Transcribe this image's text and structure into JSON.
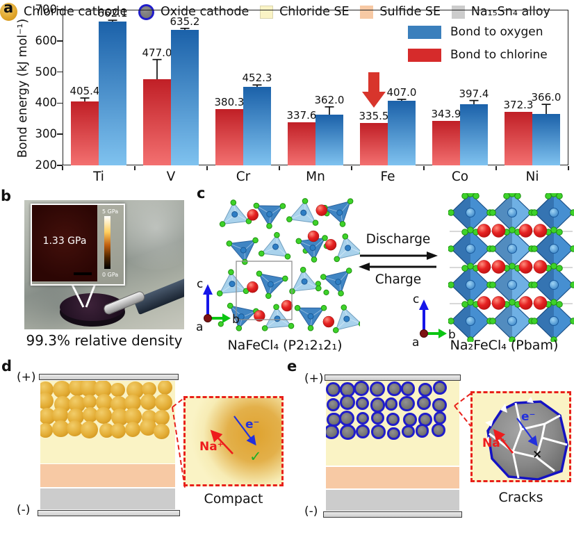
{
  "figure": {
    "panel_labels": {
      "a": "a",
      "b": "b",
      "c": "c",
      "d": "d",
      "e": "e"
    }
  },
  "chart_data": {
    "type": "bar",
    "title": "",
    "categories": [
      "Ti",
      "V",
      "Cr",
      "Mn",
      "Fe",
      "Co",
      "Ni"
    ],
    "series": [
      {
        "name": "Bond to oxygen",
        "legend_color": "#3a7fbc",
        "color_top": "#1b61a9",
        "color_bottom": "#7fc2ef",
        "values": [
          662.1,
          635.2,
          452.3,
          362.0,
          407.0,
          397.4,
          366.0
        ],
        "errors": [
          4,
          5,
          6,
          26,
          5,
          11,
          30
        ]
      },
      {
        "name": "Bond to chlorine",
        "legend_color": "#d62b2b",
        "color_top": "#c01f26",
        "color_bottom": "#f37070",
        "values": [
          405.4,
          477.0,
          380.3,
          337.6,
          335.5,
          343.9,
          372.3
        ],
        "errors": [
          11,
          63,
          null,
          null,
          null,
          null,
          null
        ]
      }
    ],
    "xlabel": "",
    "ylabel": "Bond energy (kJ mol⁻¹)",
    "ylim": [
      200,
      700
    ],
    "yticks": [
      200,
      300,
      400,
      500,
      600,
      700
    ],
    "grid": false,
    "legend_position": "top-right",
    "annotation": {
      "symbol": "down-arrow",
      "target_category": "Fe",
      "target_series": "Bond to chlorine"
    }
  },
  "panel_b": {
    "modulus_value": "1.33 GPa",
    "colorbar_max": "5 GPa",
    "colorbar_min": "0 GPa",
    "caption": "99.3% relative density"
  },
  "panel_c": {
    "left_label": "NaFeCl₄ (P2₁2₁2₁)",
    "right_label": "Na₂FeCl₄ (Pbam)",
    "arrow_forward": "Discharge",
    "arrow_backward": "Charge",
    "axis": {
      "a": "a",
      "b": "b",
      "c": "c"
    }
  },
  "panel_d": {
    "positive": "(+)",
    "negative": "(-)",
    "ion_label": "Na⁺",
    "electron_label": "e⁻",
    "status_mark": "✓",
    "caption": "Compact"
  },
  "panel_e": {
    "positive": "(+)",
    "negative": "(-)",
    "ion_label": "Na⁺",
    "electron_label": "e⁻",
    "fail_mark": "×",
    "caption": "Cracks"
  },
  "legend": {
    "items": [
      {
        "key": "chloride-cathode",
        "label": "Chloride cathode"
      },
      {
        "key": "oxide-cathode",
        "label": "Oxide cathode"
      },
      {
        "key": "chloride-se",
        "label": "Chloride SE"
      },
      {
        "key": "sulfide-se",
        "label": "Sulfide SE"
      },
      {
        "key": "na15sn4-alloy",
        "label": "Na₁₅Sn₄ alloy"
      }
    ]
  },
  "colors": {
    "oxygen_bar_top": "#1b61a9",
    "oxygen_bar_bottom": "#7fc2ef",
    "chlorine_bar_top": "#c01f26",
    "chlorine_bar_bottom": "#f37070",
    "annotation_arrow": "#d8352c",
    "chloride_se": "#faf3c5",
    "sulfide_se": "#f7c9a4",
    "alloy": "#cccccc",
    "chloride_cathode": "#e0a52a",
    "oxide_cathode_fill": "#757575",
    "oxide_cathode_ring": "#201dca",
    "na_ion": "#ee1c1c",
    "electron": "#2330dd",
    "check": "#1faf27"
  }
}
